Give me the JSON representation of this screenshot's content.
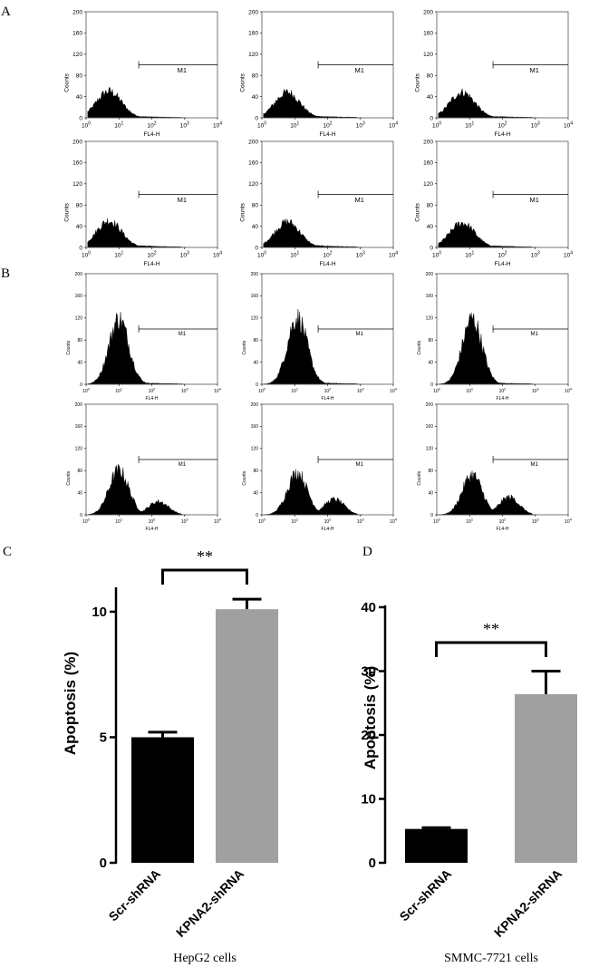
{
  "panel_labels": {
    "a": "A",
    "b": "B",
    "c": "C",
    "d": "D"
  },
  "histogram_axis": {
    "ylabel": "Counts",
    "xlabel": "FL4-H",
    "y_ticks": [
      "0",
      "40",
      "80",
      "120",
      "160",
      "200"
    ],
    "x_tick_bases": [
      "10",
      "10",
      "10",
      "10",
      "10"
    ],
    "x_tick_exponents": [
      "0",
      "1",
      "2",
      "3",
      "4"
    ],
    "marker": "M1"
  },
  "chart_data": [
    {
      "type": "histogram",
      "panel": "A",
      "description_rows": 2,
      "description_cols": 3,
      "xlabel": "FL4-H",
      "ylabel": "Counts",
      "xscale": "log",
      "xlim": [
        1,
        10000
      ],
      "ylim": [
        0,
        200
      ],
      "gate": {
        "label": "M1",
        "range": [
          40,
          10000
        ]
      },
      "plots": [
        {
          "peak_x": 5,
          "peak_y": 50,
          "tail": 0.12
        },
        {
          "peak_x": 6,
          "peak_y": 48,
          "tail": 0.14
        },
        {
          "peak_x": 6,
          "peak_y": 48,
          "tail": 0.13
        },
        {
          "peak_x": 5,
          "peak_y": 50,
          "tail": 0.15
        },
        {
          "peak_x": 6,
          "peak_y": 48,
          "tail": 0.16
        },
        {
          "peak_x": 6,
          "peak_y": 46,
          "tail": 0.15
        }
      ]
    },
    {
      "type": "histogram",
      "panel": "B",
      "xlabel": "FL4-H",
      "ylabel": "Counts",
      "xscale": "log",
      "xlim": [
        1,
        10000
      ],
      "ylim": [
        0,
        200
      ],
      "gate": {
        "label": "M1",
        "range": [
          40,
          10000
        ]
      },
      "plots": [
        {
          "peak_x": 10,
          "peak_y": 118,
          "peak2_x": 0,
          "peak2_y": 0
        },
        {
          "peak_x": 12,
          "peak_y": 120,
          "peak2_x": 0,
          "peak2_y": 0
        },
        {
          "peak_x": 12,
          "peak_y": 118,
          "peak2_x": 0,
          "peak2_y": 0
        },
        {
          "peak_x": 10,
          "peak_y": 80,
          "peak2_x": 160,
          "peak2_y": 24
        },
        {
          "peak_x": 12,
          "peak_y": 76,
          "peak2_x": 160,
          "peak2_y": 28
        },
        {
          "peak_x": 12,
          "peak_y": 72,
          "peak2_x": 160,
          "peak2_y": 32
        }
      ]
    },
    {
      "type": "bar",
      "panel": "C",
      "categories": [
        "Scr-shRNA",
        "KPNA2-shRNA"
      ],
      "values": [
        5.0,
        10.1
      ],
      "errors": [
        0.2,
        0.4
      ],
      "colors": [
        "#000000",
        "#a0a0a0"
      ],
      "ylabel": "Apoptosis (%)",
      "ylim": [
        0,
        10.9
      ],
      "yticks": [
        "0",
        "5",
        "10"
      ],
      "significance": "**",
      "caption": "HepG2 cells"
    },
    {
      "type": "bar",
      "panel": "D",
      "categories": [
        "Scr-shRNA",
        "KPNA2-shRNA"
      ],
      "values": [
        5.3,
        26.4
      ],
      "errors": [
        0.2,
        3.6
      ],
      "colors": [
        "#000000",
        "#a0a0a0"
      ],
      "ylabel": "Apoptosis (%)",
      "ylim": [
        0,
        40
      ],
      "yticks": [
        "0",
        "10",
        "20",
        "30",
        "40"
      ],
      "significance": "**",
      "caption": "SMMC-7721 cells"
    }
  ]
}
